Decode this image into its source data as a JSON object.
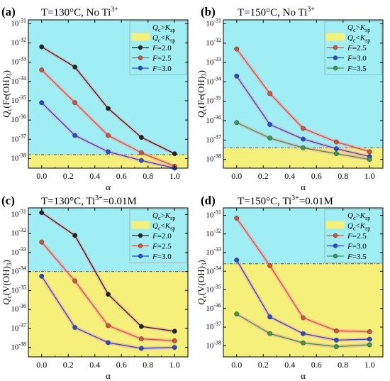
{
  "colors": {
    "above": "#9eeef3",
    "below": "#f4f07a",
    "threshold": "#555555",
    "black_series": "#222222",
    "red_series": "#d9503a",
    "blue_series": "#2a48d8",
    "green_series": "#3a9a52",
    "halo": "#f2a0a8"
  },
  "chart_data": [
    {
      "type": "line",
      "panel_label": "(a)",
      "title": "T=130°C, No Ti",
      "title_sup": "3+",
      "title_tail": "",
      "ylabel_main": "Q",
      "ylabel_sub": "c",
      "ylabel_tail": "(Fe(OH)",
      "ylabel_sub2": "3",
      "ylabel_end": ")",
      "xlabel": "α",
      "x_ticks": [
        "0.0",
        "0.2",
        "0.4",
        "0.6",
        "0.8",
        "1.0"
      ],
      "y_ticks": [
        "10-38",
        "10-37",
        "10-36",
        "10-35",
        "10-34",
        "10-33",
        "10-32",
        "10-31"
      ],
      "xlim": [
        -0.1,
        1.1
      ],
      "ylim_log10": [
        -38.5,
        -30.8
      ],
      "log_y": true,
      "threshold_log10": -37.8,
      "legend": {
        "region_above": [
          "Q",
          "c",
          ">",
          "K",
          "sp"
        ],
        "region_below": [
          "Q",
          "c",
          "<",
          "K",
          "sp"
        ],
        "placement": "top-right"
      },
      "series": [
        {
          "name": "F=2.0",
          "f_label": "F",
          "f_value": "=2.0",
          "color": "#222222",
          "x": [
            0,
            0.25,
            0.5,
            0.75,
            1.0
          ],
          "y_log10": [
            -32.2,
            -33.25,
            -35.4,
            -36.9,
            -37.75
          ]
        },
        {
          "name": "F=2.5",
          "f_label": "F",
          "f_value": "=2.5",
          "color": "#d9503a",
          "x": [
            0,
            0.25,
            0.5,
            0.75,
            1.0
          ],
          "y_log10": [
            -33.4,
            -35.1,
            -36.8,
            -37.7,
            -38.4
          ]
        },
        {
          "name": "F=3.0",
          "f_label": "F",
          "f_value": "=3.0",
          "color": "#2a48d8",
          "x": [
            0,
            0.25,
            0.5,
            0.75,
            1.0
          ],
          "y_log10": [
            -35.1,
            -36.8,
            -37.65,
            -38.1,
            -38.5
          ]
        }
      ]
    },
    {
      "type": "line",
      "panel_label": "(b)",
      "title": "T=150°C, No Ti",
      "title_sup": "3+",
      "title_tail": "",
      "ylabel_main": "Q",
      "ylabel_sub": "c",
      "ylabel_tail": "(Fe(OH)",
      "ylabel_sub2": "3",
      "ylabel_end": ")",
      "xlabel": "α",
      "x_ticks": [
        "0.0",
        "0.2",
        "0.4",
        "0.6",
        "0.8",
        "1.0"
      ],
      "y_ticks": [
        "10-38",
        "10-37",
        "10-36",
        "10-35",
        "10-34",
        "10-33",
        "10-32",
        "10-31"
      ],
      "xlim": [
        -0.1,
        1.1
      ],
      "ylim_log10": [
        -38.45,
        -30.8
      ],
      "log_y": true,
      "threshold_log10": -37.4,
      "legend": {
        "region_above": [
          "Q",
          "c",
          ">",
          "K",
          "sp"
        ],
        "region_below": [
          "Q",
          "c",
          "<",
          "K",
          "sp"
        ],
        "placement": "top-right"
      },
      "series": [
        {
          "name": "F=2.5",
          "f_label": "F",
          "f_value": "=2.5",
          "color": "#d9503a",
          "x": [
            0,
            0.25,
            0.5,
            0.75,
            1.0
          ],
          "y_log10": [
            -32.3,
            -34.6,
            -36.4,
            -37.1,
            -37.6
          ]
        },
        {
          "name": "F=3.0",
          "f_label": "F",
          "f_value": "=3.0",
          "color": "#2a48d8",
          "x": [
            0,
            0.25,
            0.5,
            0.75,
            1.0
          ],
          "y_log10": [
            -33.7,
            -36.2,
            -36.95,
            -37.45,
            -37.85
          ]
        },
        {
          "name": "F=3.5",
          "f_label": "F",
          "f_value": "=3.5",
          "color": "#3a9a52",
          "x": [
            0,
            0.25,
            0.5,
            0.75,
            1.0
          ],
          "y_log10": [
            -36.1,
            -36.9,
            -37.4,
            -37.7,
            -38.0
          ]
        }
      ]
    },
    {
      "type": "line",
      "panel_label": "(c)",
      "title": "T=130°C, Ti",
      "title_sup": "3+",
      "title_tail": "=0.01M",
      "ylabel_main": "Q",
      "ylabel_sub": "c",
      "ylabel_tail": "(V(OH)",
      "ylabel_sub2": "3",
      "ylabel_end": ")",
      "xlabel": "α",
      "x_ticks": [
        "0.0",
        "0.2",
        "0.4",
        "0.6",
        "0.8",
        "1.0"
      ],
      "y_ticks": [
        "10-38",
        "10-37",
        "10-36",
        "10-35",
        "10-34",
        "10-33",
        "10-32",
        "10-31"
      ],
      "xlim": [
        -0.1,
        1.1
      ],
      "ylim_log10": [
        -38.5,
        -30.65
      ],
      "log_y": true,
      "threshold_log10": -34.0,
      "legend": {
        "region_above": [
          "Q",
          "c",
          ">",
          "K",
          "sp"
        ],
        "region_below": [
          "Q",
          "c",
          "<",
          "K",
          "sp"
        ],
        "placement": "top-right"
      },
      "series": [
        {
          "name": "F=2.0",
          "f_label": "F",
          "f_value": "=2.0",
          "color": "#222222",
          "x": [
            0,
            0.25,
            0.5,
            0.75,
            1.0
          ],
          "y_log10": [
            -30.9,
            -32.1,
            -35.2,
            -36.9,
            -37.15
          ]
        },
        {
          "name": "F=2.5",
          "f_label": "F",
          "f_value": "=2.5",
          "color": "#d9503a",
          "x": [
            0,
            0.25,
            0.5,
            0.75,
            1.0
          ],
          "y_log10": [
            -32.45,
            -34.5,
            -36.85,
            -37.55,
            -37.65
          ]
        },
        {
          "name": "F=3.0",
          "f_label": "F",
          "f_value": "=3.0",
          "color": "#2a48d8",
          "x": [
            0,
            0.25,
            0.5,
            0.75,
            1.0
          ],
          "y_log10": [
            -34.25,
            -36.95,
            -37.75,
            -38.05,
            -38.0
          ]
        }
      ]
    },
    {
      "type": "line",
      "panel_label": "(d)",
      "title": "T=150°C, Ti",
      "title_sup": "3+",
      "title_tail": "=0.01M",
      "ylabel_main": "Q",
      "ylabel_sub": "c",
      "ylabel_tail": "(V(OH)",
      "ylabel_sub2": "3",
      "ylabel_end": ")",
      "xlabel": "α",
      "x_ticks": [
        "0.0",
        "0.2",
        "0.4",
        "0.6",
        "0.8",
        "1.0"
      ],
      "y_ticks": [
        "10-38",
        "10-37",
        "10-36",
        "10-35",
        "10-34",
        "10-33",
        "10-32",
        "10-31"
      ],
      "xlim": [
        -0.1,
        1.1
      ],
      "ylim_log10": [
        -38.6,
        -30.6
      ],
      "log_y": true,
      "threshold_log10": -33.6,
      "legend": {
        "region_above": [
          "Q",
          "c",
          ">",
          "K",
          "sp"
        ],
        "region_below": [
          "Q",
          "c",
          "<",
          "K",
          "sp"
        ],
        "placement": "top-right"
      },
      "series": [
        {
          "name": "F=2.5",
          "f_label": "F",
          "f_value": "=2.5",
          "color": "#d9503a",
          "x": [
            0,
            0.25,
            0.5,
            0.75,
            1.0
          ],
          "y_log10": [
            -31.15,
            -33.7,
            -36.5,
            -37.2,
            -37.25
          ]
        },
        {
          "name": "F=3.0",
          "f_label": "F",
          "f_value": "=3.0",
          "color": "#2a48d8",
          "x": [
            0,
            0.25,
            0.5,
            0.75,
            1.0
          ],
          "y_log10": [
            -33.4,
            -36.45,
            -37.35,
            -37.7,
            -37.65
          ]
        },
        {
          "name": "F=3.5",
          "f_label": "F",
          "f_value": "=3.5",
          "color": "#3a9a52",
          "x": [
            0,
            0.25,
            0.5,
            0.75,
            1.0
          ],
          "y_log10": [
            -36.3,
            -37.35,
            -37.85,
            -38.05,
            -37.95
          ]
        }
      ]
    }
  ]
}
